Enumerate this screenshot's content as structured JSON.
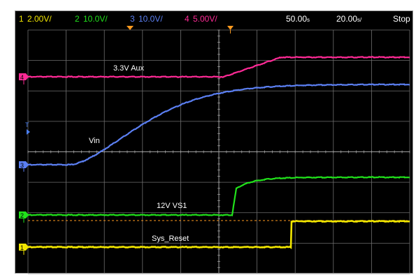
{
  "status_bar": {
    "channels": [
      {
        "num": "1",
        "scale": "2.00V/",
        "color": "#f2e600"
      },
      {
        "num": "2",
        "scale": "10.0V/",
        "color": "#21e21b"
      },
      {
        "num": "3",
        "scale": "10.0V/",
        "color": "#5b7ff2"
      },
      {
        "num": "4",
        "scale": "5.00V/",
        "color": "#ff2a96"
      }
    ],
    "time_offset": "50.00",
    "time_offset_unit": "s",
    "time_scale": "20.00",
    "time_scale_unit": "s/",
    "run_state": "Stop",
    "background": "#000000",
    "text_color": "#ffffff"
  },
  "markers": {
    "trigger_top": "▼",
    "time_ref": "▼",
    "trigger_level": "T",
    "channel_markers": [
      "4",
      "3",
      "2",
      "1"
    ],
    "colors": {
      "trigger": "#ff9a1e",
      "trigger_level": "#4a7ff2"
    }
  },
  "trace_labels": {
    "aux": "3.3V Aux",
    "vin": "Vin",
    "vs1": "12V VS1",
    "reset": "Sys_Reset"
  },
  "graticule": {
    "cols": 10,
    "rows": 8,
    "grid_color": "#6e6e6e",
    "center_color": "#a0a0a0"
  },
  "colors": {
    "screen": "#000000",
    "cursor_line": "#ff9a1e"
  }
}
